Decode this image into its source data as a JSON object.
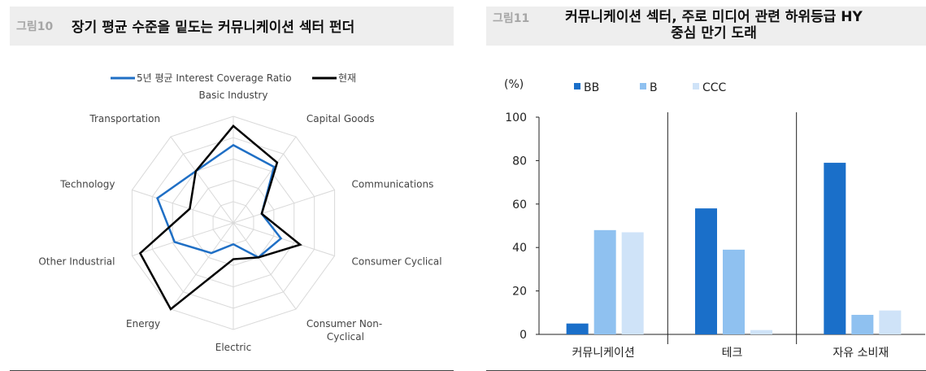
{
  "left": {
    "fig_num": "그림10",
    "fig_title": "장기 평균 수준을 밑도는 커뮤니케이션 섹터 펀더",
    "chart_data": {
      "type": "radar",
      "axes": [
        "Basic Industry",
        "Capital Goods",
        "Communications",
        "Consumer Cyclical",
        "Consumer Non-Cyclical",
        "Electric",
        "Energy",
        "Other Industrial",
        "Technology",
        "Transportation"
      ],
      "axis_label_lines": [
        [
          "Basic Industry"
        ],
        [
          "Capital Goods"
        ],
        [
          "Communications"
        ],
        [
          "Consumer Cyclical"
        ],
        [
          "Consumer Non-",
          "Cyclical"
        ],
        [
          "Electric"
        ],
        [
          "Energy"
        ],
        [
          "Other Industrial"
        ],
        [
          "Technology"
        ],
        [
          "Transportation"
        ]
      ],
      "rmax": 1.0,
      "rings": 5,
      "series": [
        {
          "name": "5년 평균 Interest Coverage Ratio",
          "color": "#1f6fc5",
          "values": [
            0.73,
            0.65,
            0.28,
            0.47,
            0.4,
            0.2,
            0.35,
            0.58,
            0.75,
            0.6
          ]
        },
        {
          "name": "현재",
          "color": "#000000",
          "values": [
            0.91,
            0.7,
            0.28,
            0.66,
            0.4,
            0.34,
            1.0,
            0.92,
            0.43,
            0.6
          ]
        }
      ]
    }
  },
  "right": {
    "fig_num": "그림11",
    "fig_title_lines": [
      "커뮤니케이션 섹터, 주로 미디어 관련 하위등급 HY",
      "중심 만기 도래"
    ],
    "chart_data": {
      "type": "bar",
      "unit_label": "(%)",
      "categories": [
        "커뮤니케이션",
        "테크",
        "자유 소비재"
      ],
      "ylim": [
        0,
        100
      ],
      "yticks": [
        0,
        20,
        40,
        60,
        80,
        100
      ],
      "series": [
        {
          "name": "BB",
          "color": "#1a6fc9",
          "values": [
            5,
            58,
            79
          ]
        },
        {
          "name": "B",
          "color": "#8fc1f0",
          "values": [
            48,
            39,
            9
          ]
        },
        {
          "name": "CCC",
          "color": "#cfe3f8",
          "values": [
            47,
            2,
            11
          ]
        }
      ]
    }
  }
}
